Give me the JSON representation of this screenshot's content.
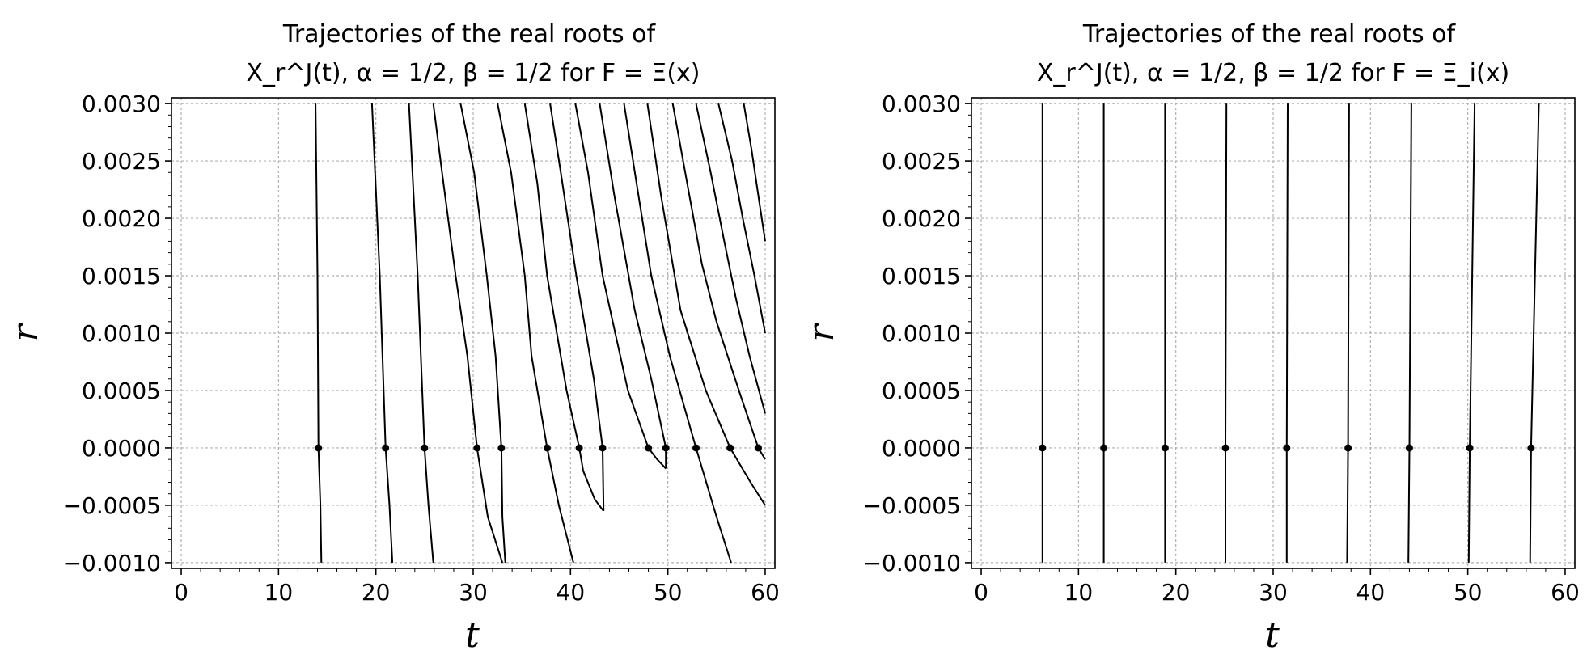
{
  "chart_data": [
    {
      "type": "line",
      "title_line1": "Trajectories of the real roots of",
      "title_line2": "X_r^J(t), α = 1/2, β = 1/2 for F = Ξ(x)",
      "xlabel": "t",
      "ylabel": "r",
      "xlim": [
        -1,
        61
      ],
      "ylim": [
        -0.00105,
        0.00305
      ],
      "xticks": [
        "0",
        "10",
        "20",
        "30",
        "40",
        "50",
        "60"
      ],
      "yticks": [
        "0.0030",
        "0.0025",
        "0.0020",
        "0.0015",
        "0.0010",
        "0.0005",
        "0.0000",
        "−0.0005",
        "−0.0010"
      ],
      "grid": true,
      "roots_at_r0": [
        14.1,
        21.0,
        25.0,
        30.4,
        32.9,
        37.6,
        40.9,
        43.3,
        48.0,
        49.8,
        52.9,
        56.4,
        59.3
      ],
      "series": [
        {
          "x": [
            14.4,
            14.3,
            14.1,
            14.0,
            13.8
          ],
          "y": [
            -0.001,
            -0.0005,
            0.0,
            0.0015,
            0.003
          ]
        },
        {
          "x": [
            21.7,
            21.4,
            21.0,
            20.4,
            19.6
          ],
          "y": [
            -0.001,
            -0.0005,
            0.0,
            0.0015,
            0.003
          ]
        },
        {
          "x": [
            25.9,
            25.4,
            25.0,
            24.3,
            23.4
          ],
          "y": [
            -0.001,
            -0.0005,
            0.0,
            0.0015,
            0.003
          ]
        },
        {
          "x": [
            33.0,
            31.5,
            30.4,
            29.4,
            28.2,
            26.8,
            25.9
          ],
          "y": [
            -0.001,
            -0.0006,
            0.0,
            0.0008,
            0.0015,
            0.0024,
            0.003
          ]
        },
        {
          "x": [
            33.3,
            33.0,
            32.9,
            32.3,
            31.4,
            30.1,
            28.7
          ],
          "y": [
            -0.001,
            -0.0006,
            0.0,
            0.0008,
            0.0015,
            0.0024,
            0.003
          ]
        },
        {
          "x": [
            40.3,
            38.8,
            37.6,
            36.0,
            35.3,
            33.9,
            32.5
          ],
          "y": [
            -0.001,
            -0.0005,
            0.0,
            0.0008,
            0.0015,
            0.0024,
            0.003
          ]
        },
        {
          "x": [
            43.4,
            42.5,
            41.3,
            40.9,
            39.6,
            37.6,
            36.6,
            35.3
          ],
          "y": [
            -0.00055,
            -0.00045,
            -0.0002,
            0.0,
            0.0005,
            0.0015,
            0.0023,
            0.003
          ]
        },
        {
          "x": [
            43.4,
            43.3,
            42.4,
            40.6,
            39.0,
            37.9
          ],
          "y": [
            -0.00055,
            0.0,
            0.0006,
            0.0015,
            0.0024,
            0.003
          ]
        },
        {
          "x": [
            49.8,
            48.9,
            48.0,
            45.9,
            43.3,
            41.8,
            40.5
          ],
          "y": [
            -0.00018,
            -0.0001,
            0.0,
            0.0005,
            0.0015,
            0.0024,
            0.003
          ]
        },
        {
          "x": [
            49.8,
            49.8,
            48.3,
            46.6,
            44.5,
            43.0
          ],
          "y": [
            -0.00018,
            0.0,
            0.0006,
            0.0012,
            0.0022,
            0.003
          ]
        },
        {
          "x": [
            56.5,
            55.0,
            52.9,
            50.2,
            48.3,
            46.8,
            45.5
          ],
          "y": [
            -0.001,
            -0.0006,
            0.0,
            0.0008,
            0.0015,
            0.0023,
            0.003
          ]
        },
        {
          "x": [
            60.0,
            58.5,
            56.4,
            53.9,
            51.3,
            49.3,
            47.9
          ],
          "y": [
            -0.0005,
            -0.0003,
            0.0,
            0.0005,
            0.0012,
            0.0022,
            0.003
          ]
        },
        {
          "x": [
            60.0,
            59.3,
            57.3,
            55.0,
            53.5,
            52.0,
            50.5
          ],
          "y": [
            -0.0001,
            0.0,
            0.0005,
            0.0011,
            0.0016,
            0.0023,
            0.003
          ]
        },
        {
          "x": [
            60.0,
            58.4,
            57.0,
            55.8,
            54.4,
            52.9
          ],
          "y": [
            0.0003,
            0.0008,
            0.0013,
            0.0018,
            0.0024,
            0.003
          ]
        },
        {
          "x": [
            60.0,
            58.9,
            57.7,
            56.6,
            55.2
          ],
          "y": [
            0.001,
            0.0015,
            0.002,
            0.0025,
            0.003
          ]
        },
        {
          "x": [
            60.0,
            59.3,
            58.6,
            57.8
          ],
          "y": [
            0.0018,
            0.0022,
            0.0026,
            0.003
          ]
        }
      ]
    },
    {
      "type": "line",
      "title_line1": "Trajectories of the real roots of",
      "title_line2": "X_r^J(t), α = 1/2, β = 1/2 for F = Ξ_i(x)",
      "xlabel": "t",
      "ylabel": "r",
      "xlim": [
        -1,
        61
      ],
      "ylim": [
        -0.00105,
        0.00305
      ],
      "xticks": [
        "0",
        "10",
        "20",
        "30",
        "40",
        "50",
        "60"
      ],
      "yticks": [
        "0.0030",
        "0.0025",
        "0.0020",
        "0.0015",
        "0.0010",
        "0.0005",
        "0.0000",
        "−0.0005",
        "−0.0010"
      ],
      "grid": true,
      "roots_at_r0": [
        6.3,
        12.6,
        18.9,
        25.1,
        31.4,
        37.7,
        44.0,
        50.2,
        56.5
      ],
      "series": [
        {
          "x": [
            6.3,
            6.3,
            6.3
          ],
          "y": [
            -0.001,
            0.0,
            0.003
          ]
        },
        {
          "x": [
            12.6,
            12.6,
            12.6
          ],
          "y": [
            -0.001,
            0.0,
            0.003
          ]
        },
        {
          "x": [
            18.9,
            18.9,
            18.9
          ],
          "y": [
            -0.001,
            0.0,
            0.003
          ]
        },
        {
          "x": [
            25.1,
            25.1,
            25.2
          ],
          "y": [
            -0.001,
            0.0,
            0.003
          ]
        },
        {
          "x": [
            31.4,
            31.4,
            31.5
          ],
          "y": [
            -0.001,
            0.0,
            0.003
          ]
        },
        {
          "x": [
            37.6,
            37.7,
            37.8
          ],
          "y": [
            -0.001,
            0.0,
            0.003
          ]
        },
        {
          "x": [
            43.9,
            44.0,
            44.2
          ],
          "y": [
            -0.001,
            0.0,
            0.003
          ]
        },
        {
          "x": [
            50.1,
            50.2,
            50.7
          ],
          "y": [
            -0.001,
            0.0,
            0.003
          ]
        },
        {
          "x": [
            56.4,
            56.5,
            57.3
          ],
          "y": [
            -0.001,
            0.0,
            0.003
          ]
        }
      ]
    }
  ]
}
